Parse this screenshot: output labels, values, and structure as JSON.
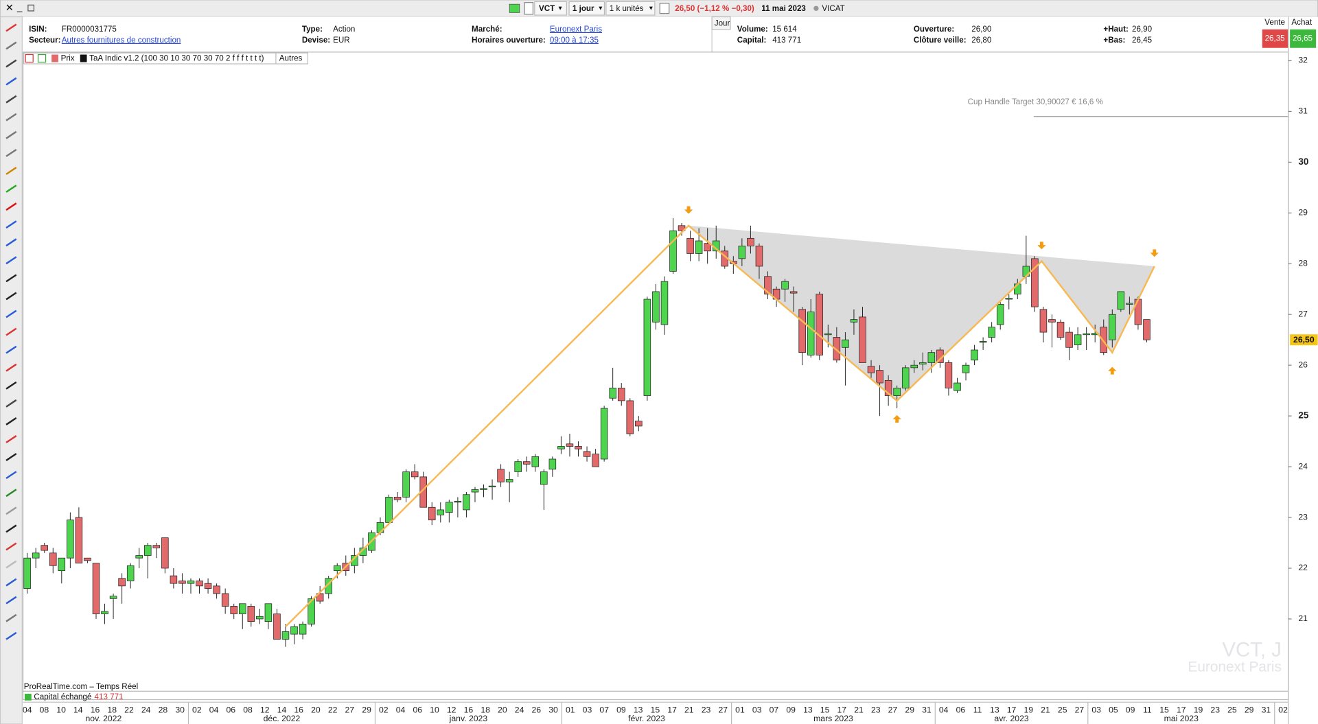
{
  "toolbar": {
    "symbol": "VCT",
    "period": "1 jour",
    "units": "1 k unités",
    "change": "26,50 (−1,12 % −0,30)",
    "date": "11 mai 2023",
    "name": "VICAT"
  },
  "info": {
    "columns": [
      [
        {
          "label": "ISIN:",
          "value": "FR0000031775"
        },
        {
          "label": "Secteur:",
          "value": "Autres fournitures de construction",
          "link": true
        }
      ],
      [
        {
          "label": "Type:",
          "value": "Action"
        },
        {
          "label": "Devise:",
          "value": "EUR"
        }
      ],
      [
        {
          "label": "Marché:",
          "value": "Euronext Paris",
          "link": true
        },
        {
          "label": "Horaires ouverture:",
          "value": "09:00 à 17:35",
          "link": true
        }
      ],
      [
        {
          "label": "Volume:",
          "value": "15 614"
        },
        {
          "label": "Capital:",
          "value": "413 771"
        }
      ],
      [
        {
          "label": "Ouverture:",
          "value": "26,90"
        },
        {
          "label": "Clôture veille:",
          "value": "26,80"
        }
      ],
      [
        {
          "label": "+Haut:",
          "value": "26,90"
        },
        {
          "label": "+Bas:",
          "value": "26,45"
        }
      ]
    ],
    "period_tab": "Jour"
  },
  "quote": {
    "sell_label": "Vente",
    "sell": "26,35",
    "buy_label": "Achat",
    "buy": "26,65"
  },
  "legend": {
    "price": "Prix",
    "indicator": "TaA Indic v1.2 (100 30 10 30 70 30 70 2 f f f t t t t)",
    "others": "Autres"
  },
  "footer": {
    "source": "ProRealTime.com – Temps Réel",
    "capital_label": "Capital échangé",
    "capital_value": "413 771"
  },
  "watermark": {
    "symbol": "VCT, J",
    "market": "Euronext Paris"
  },
  "chart_data": {
    "type": "candlestick",
    "up_color": "#4fd44f",
    "down_color": "#e36a6a",
    "ylim": [
      19.41,
      32.17
    ],
    "yticks": [
      21,
      22,
      23,
      24,
      25,
      26,
      27,
      28,
      29,
      30,
      31,
      32
    ],
    "last": 26.5,
    "last_label": "26,50",
    "candles": [
      [
        21.6,
        22.3,
        21.5,
        22.2
      ],
      [
        22.2,
        22.4,
        22.0,
        22.3
      ],
      [
        22.45,
        22.5,
        22.3,
        22.35
      ],
      [
        22.3,
        22.4,
        21.9,
        22.05
      ],
      [
        21.95,
        22.2,
        21.7,
        22.2
      ],
      [
        22.2,
        23.1,
        22.0,
        22.95
      ],
      [
        23.0,
        23.2,
        22.1,
        22.1
      ],
      [
        22.2,
        22.2,
        22.1,
        22.15
      ],
      [
        22.1,
        22.1,
        21.0,
        21.1
      ],
      [
        21.1,
        21.3,
        20.9,
        21.15
      ],
      [
        21.4,
        21.5,
        21.0,
        21.45
      ],
      [
        21.8,
        21.9,
        21.3,
        21.65
      ],
      [
        21.75,
        22.1,
        21.6,
        22.05
      ],
      [
        22.2,
        22.4,
        22.0,
        22.25
      ],
      [
        22.25,
        22.5,
        21.8,
        22.45
      ],
      [
        22.45,
        22.5,
        22.2,
        22.4
      ],
      [
        22.6,
        22.6,
        21.9,
        22.0
      ],
      [
        21.85,
        22.0,
        21.6,
        21.7
      ],
      [
        21.75,
        21.9,
        21.5,
        21.7
      ],
      [
        21.7,
        21.8,
        21.5,
        21.75
      ],
      [
        21.75,
        21.8,
        21.5,
        21.65
      ],
      [
        21.7,
        21.8,
        21.5,
        21.6
      ],
      [
        21.65,
        21.7,
        21.4,
        21.5
      ],
      [
        21.5,
        21.6,
        21.1,
        21.25
      ],
      [
        21.25,
        21.3,
        21.0,
        21.1
      ],
      [
        21.1,
        21.3,
        20.8,
        21.3
      ],
      [
        21.25,
        21.3,
        20.85,
        20.95
      ],
      [
        21.0,
        21.2,
        20.9,
        21.05
      ],
      [
        20.95,
        21.2,
        20.8,
        21.3
      ],
      [
        21.1,
        21.2,
        20.6,
        20.6
      ],
      [
        20.6,
        20.9,
        20.45,
        20.75
      ],
      [
        20.7,
        20.9,
        20.5,
        20.85
      ],
      [
        20.7,
        20.95,
        20.6,
        20.9
      ],
      [
        20.9,
        21.45,
        20.85,
        21.4
      ],
      [
        21.5,
        21.65,
        21.3,
        21.35
      ],
      [
        21.5,
        21.85,
        21.4,
        21.8
      ],
      [
        21.95,
        22.1,
        21.8,
        22.05
      ],
      [
        22.1,
        22.25,
        21.85,
        21.95
      ],
      [
        22.05,
        22.4,
        21.9,
        22.25
      ],
      [
        22.25,
        22.6,
        22.1,
        22.4
      ],
      [
        22.35,
        22.75,
        22.3,
        22.7
      ],
      [
        22.7,
        23.0,
        22.65,
        22.9
      ],
      [
        22.9,
        23.45,
        22.85,
        23.4
      ],
      [
        23.4,
        23.5,
        23.3,
        23.35
      ],
      [
        23.4,
        23.95,
        23.3,
        23.9
      ],
      [
        23.9,
        24.05,
        23.75,
        23.8
      ],
      [
        23.8,
        23.9,
        23.2,
        23.2
      ],
      [
        23.2,
        23.3,
        22.85,
        22.95
      ],
      [
        23.05,
        23.3,
        22.9,
        23.15
      ],
      [
        23.1,
        23.35,
        22.9,
        23.3
      ],
      [
        23.3,
        23.4,
        23.0,
        23.32
      ],
      [
        23.15,
        23.5,
        23.0,
        23.45
      ],
      [
        23.5,
        23.6,
        23.3,
        23.55
      ],
      [
        23.55,
        23.65,
        23.4,
        23.57
      ],
      [
        23.6,
        23.75,
        23.35,
        23.62
      ],
      [
        23.95,
        24.05,
        23.6,
        23.7
      ],
      [
        23.7,
        23.9,
        23.3,
        23.75
      ],
      [
        23.9,
        24.15,
        23.8,
        24.1
      ],
      [
        24.1,
        24.2,
        23.9,
        24.05
      ],
      [
        24.0,
        24.25,
        23.9,
        24.2
      ],
      [
        23.65,
        23.95,
        23.15,
        23.9
      ],
      [
        23.95,
        24.2,
        23.8,
        24.15
      ],
      [
        24.35,
        24.6,
        24.25,
        24.4
      ],
      [
        24.45,
        24.65,
        24.2,
        24.4
      ],
      [
        24.4,
        24.5,
        24.2,
        24.35
      ],
      [
        24.3,
        24.4,
        24.1,
        24.2
      ],
      [
        24.25,
        24.35,
        24.0,
        24.0
      ],
      [
        24.15,
        25.2,
        24.1,
        25.15
      ],
      [
        25.35,
        25.95,
        25.3,
        25.55
      ],
      [
        25.55,
        25.65,
        25.2,
        25.3
      ],
      [
        25.3,
        25.35,
        24.6,
        24.65
      ],
      [
        24.9,
        25.0,
        24.7,
        24.8
      ],
      [
        25.4,
        27.35,
        25.3,
        27.3
      ],
      [
        26.85,
        27.6,
        26.7,
        27.45
      ],
      [
        26.8,
        27.75,
        26.6,
        27.65
      ],
      [
        27.85,
        28.9,
        27.8,
        28.65
      ],
      [
        28.75,
        28.8,
        28.55,
        28.65
      ],
      [
        28.5,
        28.65,
        28.05,
        28.2
      ],
      [
        28.2,
        28.7,
        28.05,
        28.45
      ],
      [
        28.4,
        28.7,
        28.0,
        28.25
      ],
      [
        28.25,
        28.75,
        28.1,
        28.45
      ],
      [
        28.25,
        28.35,
        27.9,
        27.95
      ],
      [
        28.05,
        28.15,
        27.8,
        28.0
      ],
      [
        28.1,
        28.5,
        27.95,
        28.35
      ],
      [
        28.5,
        28.75,
        28.2,
        28.35
      ],
      [
        28.35,
        28.4,
        27.7,
        27.95
      ],
      [
        27.75,
        27.85,
        27.3,
        27.4
      ],
      [
        27.5,
        27.55,
        27.15,
        27.3
      ],
      [
        27.5,
        27.7,
        27.25,
        27.65
      ],
      [
        27.45,
        27.55,
        27.05,
        27.42
      ],
      [
        27.1,
        27.15,
        26.0,
        26.25
      ],
      [
        26.2,
        27.3,
        26.15,
        27.05
      ],
      [
        27.4,
        27.45,
        26.1,
        26.2
      ],
      [
        26.6,
        26.8,
        26.35,
        26.62
      ],
      [
        26.55,
        26.75,
        26.05,
        26.1
      ],
      [
        26.35,
        26.65,
        25.6,
        26.5
      ],
      [
        26.85,
        27.1,
        26.6,
        26.9
      ],
      [
        26.95,
        27.15,
        26.05,
        26.05
      ],
      [
        25.98,
        26.1,
        25.75,
        25.85
      ],
      [
        25.9,
        26.0,
        25.0,
        25.65
      ],
      [
        25.7,
        25.8,
        25.2,
        25.4
      ],
      [
        25.4,
        25.6,
        25.15,
        25.55
      ],
      [
        25.55,
        26.0,
        25.5,
        25.95
      ],
      [
        25.95,
        26.1,
        25.85,
        26.0
      ],
      [
        26.02,
        26.25,
        25.9,
        26.05
      ],
      [
        26.05,
        26.3,
        25.85,
        26.25
      ],
      [
        26.3,
        26.35,
        25.95,
        26.05
      ],
      [
        26.05,
        26.1,
        25.4,
        25.55
      ],
      [
        25.5,
        25.75,
        25.45,
        25.65
      ],
      [
        25.85,
        26.05,
        25.7,
        26.0
      ],
      [
        26.1,
        26.4,
        26.0,
        26.3
      ],
      [
        26.45,
        26.55,
        26.3,
        26.47
      ],
      [
        26.55,
        26.85,
        26.45,
        26.75
      ],
      [
        26.8,
        27.25,
        26.7,
        27.2
      ],
      [
        27.3,
        27.4,
        27.1,
        27.32
      ],
      [
        27.4,
        27.7,
        27.3,
        27.6
      ],
      [
        27.75,
        28.55,
        27.6,
        27.95
      ],
      [
        28.1,
        28.15,
        27.05,
        27.15
      ],
      [
        27.1,
        27.15,
        26.45,
        26.65
      ],
      [
        26.9,
        27.0,
        26.35,
        26.85
      ],
      [
        26.85,
        26.9,
        26.5,
        26.55
      ],
      [
        26.65,
        26.75,
        26.1,
        26.35
      ],
      [
        26.4,
        26.75,
        26.3,
        26.6
      ],
      [
        26.6,
        26.75,
        26.3,
        26.62
      ],
      [
        26.6,
        26.8,
        26.45,
        26.63
      ],
      [
        26.75,
        26.9,
        26.2,
        26.25
      ],
      [
        26.5,
        27.1,
        26.35,
        27.0
      ],
      [
        27.1,
        27.45,
        27.05,
        27.45
      ],
      [
        27.2,
        27.35,
        27.0,
        27.22
      ],
      [
        27.3,
        27.35,
        26.7,
        26.8
      ],
      [
        26.9,
        26.9,
        26.45,
        26.5
      ]
    ],
    "pattern": {
      "label": "Cup Handle Target 30,90027 € 16,6 %",
      "target": 30.90027,
      "color": "#f7b955",
      "points": [
        [
          30,
          20.85
        ],
        [
          76.8,
          28.75
        ],
        [
          101,
          25.3
        ],
        [
          117.8,
          28.05
        ],
        [
          126,
          26.25
        ],
        [
          130.9,
          27.95
        ]
      ],
      "down_arrows": [
        [
          76.8,
          29.05
        ],
        [
          117.8,
          28.35
        ],
        [
          130.9,
          28.2
        ]
      ],
      "up_arrows": [
        [
          101,
          24.95
        ],
        [
          126,
          25.9
        ]
      ]
    },
    "x_axis": {
      "months": [
        {
          "label": "nov. 2022",
          "days": [
            "04",
            "08",
            "10",
            "14",
            "16",
            "18",
            "22",
            "24",
            "28",
            "30"
          ]
        },
        {
          "label": "déc. 2022",
          "days": [
            "02",
            "04",
            "06",
            "08",
            "12",
            "14",
            "16",
            "20",
            "22",
            "27",
            "29"
          ]
        },
        {
          "label": "janv. 2023",
          "days": [
            "02",
            "04",
            "06",
            "10",
            "12",
            "16",
            "18",
            "20",
            "24",
            "26",
            "30"
          ]
        },
        {
          "label": "févr. 2023",
          "days": [
            "01",
            "03",
            "07",
            "09",
            "13",
            "15",
            "17",
            "21",
            "23",
            "27"
          ]
        },
        {
          "label": "mars 2023",
          "days": [
            "01",
            "03",
            "07",
            "09",
            "13",
            "15",
            "17",
            "21",
            "23",
            "27",
            "29",
            "31"
          ]
        },
        {
          "label": "avr. 2023",
          "days": [
            "04",
            "06",
            "11",
            "13",
            "17",
            "19",
            "21",
            "25",
            "27"
          ]
        },
        {
          "label": "mai 2023",
          "days": [
            "03",
            "05",
            "09",
            "11",
            "15",
            "17",
            "19",
            "23",
            "25",
            "29",
            "31"
          ]
        },
        {
          "label": null,
          "days": [
            "02"
          ]
        }
      ]
    }
  }
}
